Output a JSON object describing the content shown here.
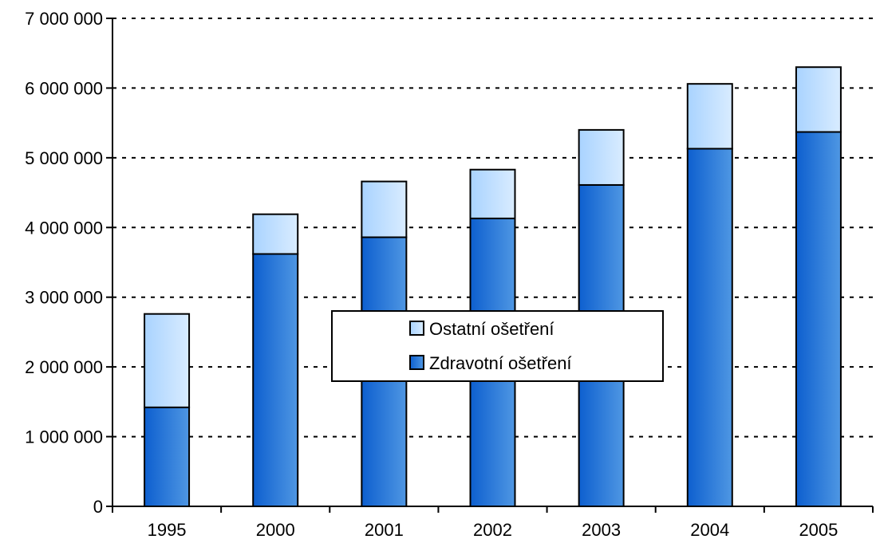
{
  "chart_data": {
    "type": "bar",
    "stacked": true,
    "categories": [
      "1995",
      "2000",
      "2001",
      "2002",
      "2003",
      "2004",
      "2005"
    ],
    "series": [
      {
        "name": "Zdravotní ošetření",
        "values": [
          1420000,
          3620000,
          3860000,
          4130000,
          4610000,
          5130000,
          5370000
        ],
        "color": "#1f6fd1"
      },
      {
        "name": "Ostatní ošetření",
        "values": [
          1340000,
          570000,
          800000,
          700000,
          790000,
          930000,
          930000
        ],
        "color": "#b7dbff"
      }
    ],
    "ylim": [
      0,
      7000000
    ],
    "yticks": [
      0,
      1000000,
      2000000,
      3000000,
      4000000,
      5000000,
      6000000,
      7000000
    ],
    "ytick_labels": [
      "0",
      "1 000 000",
      "2 000 000",
      "3 000 000",
      "4 000 000",
      "5 000 000",
      "6 000 000",
      "7 000 000"
    ],
    "grid": "horizontal dotted",
    "legend_position": "center"
  }
}
